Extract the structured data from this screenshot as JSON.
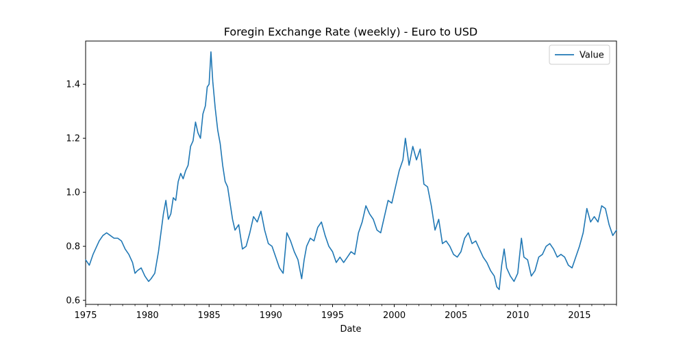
{
  "chart_data": {
    "type": "line",
    "title": "Foregin Exchange Rate (weekly) - Euro to USD",
    "xlabel": "Date",
    "ylabel": "",
    "xlim": [
      1975.0,
      2018.0
    ],
    "ylim": [
      0.585,
      1.56
    ],
    "x_ticks": [
      1975,
      1980,
      1985,
      1990,
      1995,
      2000,
      2005,
      2010,
      2015
    ],
    "x_tick_labels": [
      "1975",
      "1980",
      "1985",
      "1990",
      "1995",
      "2000",
      "2005",
      "2010",
      "2015"
    ],
    "y_ticks": [
      0.6,
      0.8,
      1.0,
      1.2,
      1.4
    ],
    "y_tick_labels": [
      "0.6",
      "0.8",
      "1.0",
      "1.2",
      "1.4"
    ],
    "legend": {
      "position": "top-right",
      "entries": [
        "Value"
      ]
    },
    "grid": false,
    "series": [
      {
        "name": "Value",
        "color": "#1f77b4",
        "x": [
          1975.0,
          1975.3,
          1975.6,
          1975.9,
          1976.1,
          1976.4,
          1976.7,
          1977.0,
          1977.3,
          1977.6,
          1977.9,
          1978.2,
          1978.5,
          1978.8,
          1979.0,
          1979.2,
          1979.5,
          1979.8,
          1980.1,
          1980.3,
          1980.6,
          1980.9,
          1981.1,
          1981.3,
          1981.5,
          1981.7,
          1981.9,
          1982.1,
          1982.3,
          1982.5,
          1982.7,
          1982.9,
          1983.1,
          1983.3,
          1983.5,
          1983.7,
          1983.9,
          1984.1,
          1984.3,
          1984.5,
          1984.7,
          1984.85,
          1985.0,
          1985.15,
          1985.3,
          1985.5,
          1985.7,
          1985.9,
          1986.1,
          1986.3,
          1986.5,
          1986.7,
          1986.9,
          1987.1,
          1987.4,
          1987.7,
          1988.0,
          1988.3,
          1988.6,
          1988.9,
          1989.2,
          1989.5,
          1989.8,
          1990.1,
          1990.4,
          1990.7,
          1991.0,
          1991.3,
          1991.6,
          1991.9,
          1992.2,
          1992.5,
          1992.7,
          1992.9,
          1993.2,
          1993.5,
          1993.8,
          1994.1,
          1994.4,
          1994.7,
          1995.0,
          1995.3,
          1995.6,
          1995.9,
          1996.2,
          1996.5,
          1996.8,
          1997.1,
          1997.4,
          1997.7,
          1998.0,
          1998.3,
          1998.6,
          1998.9,
          1999.2,
          1999.5,
          1999.8,
          2000.1,
          2000.4,
          2000.7,
          2000.9,
          2001.2,
          2001.5,
          2001.8,
          2002.1,
          2002.4,
          2002.7,
          2003.0,
          2003.3,
          2003.6,
          2003.9,
          2004.2,
          2004.5,
          2004.8,
          2005.1,
          2005.4,
          2005.7,
          2006.0,
          2006.3,
          2006.6,
          2006.9,
          2007.2,
          2007.5,
          2007.8,
          2008.1,
          2008.3,
          2008.5,
          2008.7,
          2008.9,
          2009.1,
          2009.4,
          2009.7,
          2010.0,
          2010.3,
          2010.5,
          2010.8,
          2011.1,
          2011.4,
          2011.7,
          2012.0,
          2012.3,
          2012.6,
          2012.9,
          2013.2,
          2013.5,
          2013.8,
          2014.1,
          2014.4,
          2014.7,
          2015.0,
          2015.3,
          2015.6,
          2015.9,
          2016.2,
          2016.5,
          2016.8,
          2017.1,
          2017.4,
          2017.7,
          2018.0
        ],
        "y": [
          0.75,
          0.73,
          0.77,
          0.8,
          0.82,
          0.84,
          0.85,
          0.84,
          0.83,
          0.83,
          0.82,
          0.79,
          0.77,
          0.74,
          0.7,
          0.71,
          0.72,
          0.69,
          0.67,
          0.68,
          0.7,
          0.78,
          0.85,
          0.92,
          0.97,
          0.9,
          0.92,
          0.98,
          0.97,
          1.04,
          1.07,
          1.05,
          1.08,
          1.1,
          1.17,
          1.19,
          1.26,
          1.22,
          1.2,
          1.29,
          1.32,
          1.39,
          1.4,
          1.52,
          1.41,
          1.31,
          1.23,
          1.18,
          1.1,
          1.04,
          1.02,
          0.96,
          0.9,
          0.86,
          0.88,
          0.79,
          0.8,
          0.85,
          0.91,
          0.89,
          0.93,
          0.86,
          0.81,
          0.8,
          0.76,
          0.72,
          0.7,
          0.85,
          0.82,
          0.78,
          0.75,
          0.68,
          0.75,
          0.8,
          0.83,
          0.82,
          0.87,
          0.89,
          0.84,
          0.8,
          0.78,
          0.74,
          0.76,
          0.74,
          0.76,
          0.78,
          0.77,
          0.85,
          0.89,
          0.95,
          0.92,
          0.9,
          0.86,
          0.85,
          0.91,
          0.97,
          0.96,
          1.02,
          1.08,
          1.12,
          1.2,
          1.1,
          1.17,
          1.12,
          1.16,
          1.03,
          1.02,
          0.95,
          0.86,
          0.9,
          0.81,
          0.82,
          0.8,
          0.77,
          0.76,
          0.78,
          0.83,
          0.85,
          0.81,
          0.82,
          0.79,
          0.76,
          0.74,
          0.71,
          0.69,
          0.65,
          0.64,
          0.73,
          0.79,
          0.72,
          0.69,
          0.67,
          0.7,
          0.83,
          0.76,
          0.75,
          0.69,
          0.71,
          0.76,
          0.77,
          0.8,
          0.81,
          0.79,
          0.76,
          0.77,
          0.76,
          0.73,
          0.72,
          0.76,
          0.8,
          0.85,
          0.94,
          0.89,
          0.91,
          0.89,
          0.95,
          0.94,
          0.88,
          0.84,
          0.86
        ]
      }
    ]
  }
}
